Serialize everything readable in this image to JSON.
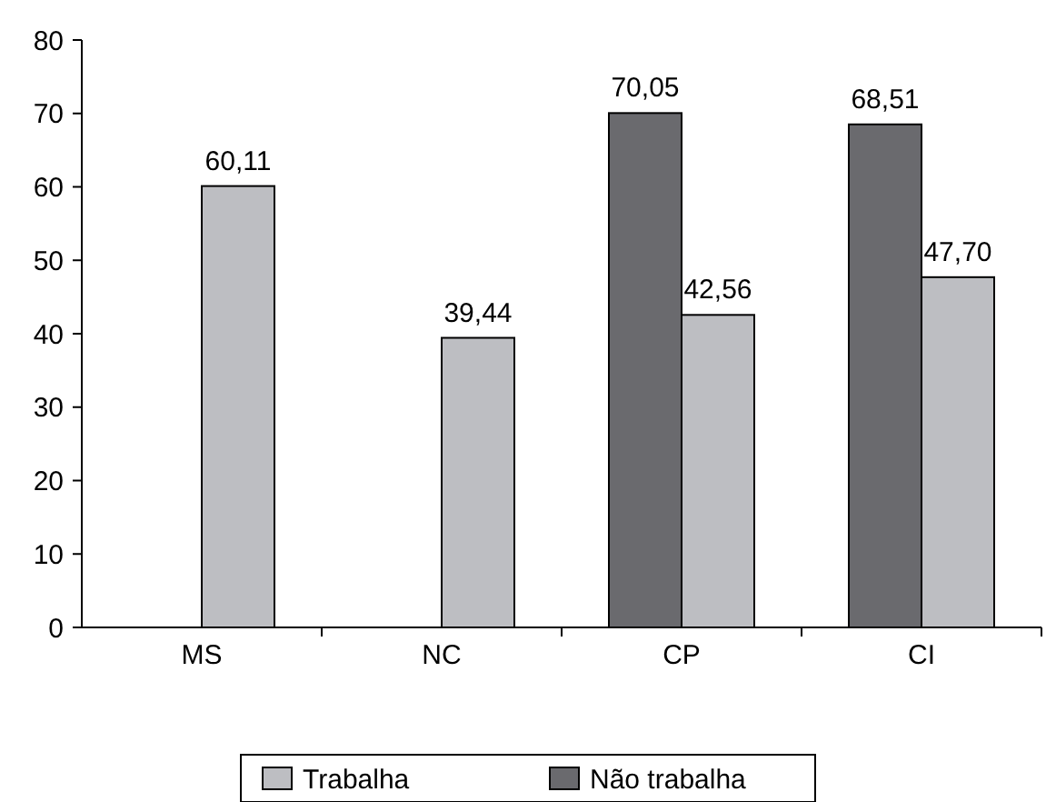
{
  "chart_data": {
    "type": "bar",
    "categories": [
      "MS",
      "NC",
      "CP",
      "CI"
    ],
    "series": [
      {
        "name": "Não trabalha",
        "color": "#6a6a6e",
        "values": [
          null,
          null,
          70.05,
          68.51
        ],
        "value_labels": [
          null,
          null,
          "70,05",
          "68,51"
        ]
      },
      {
        "name": "Trabalha",
        "color": "#bdbec2",
        "values": [
          60.11,
          39.44,
          42.56,
          47.7
        ],
        "value_labels": [
          "60,11",
          "39,44",
          "42,56",
          "47,70"
        ]
      }
    ],
    "ylim": [
      0,
      80
    ],
    "yticks": [
      0,
      10,
      20,
      30,
      40,
      50,
      60,
      70,
      80
    ],
    "grid": false,
    "legend": "bottom"
  }
}
